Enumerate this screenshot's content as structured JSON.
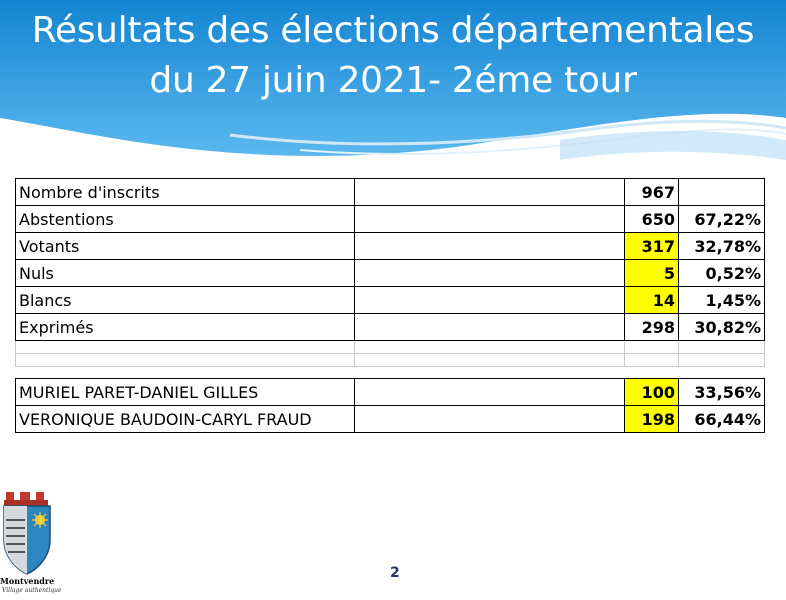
{
  "header": {
    "title_line1": "Résultats des élections départementales",
    "title_line2": "du 27 juin 2021- 2éme tour"
  },
  "table": {
    "rows": [
      {
        "label": "Nombre d'inscrits",
        "value": "967",
        "percent": "",
        "highlight": false
      },
      {
        "label": "Abstentions",
        "value": "650",
        "percent": "67,22%",
        "highlight": false
      },
      {
        "label": "Votants",
        "value": "317",
        "percent": "32,78%",
        "highlight": true
      },
      {
        "label": "Nuls",
        "value": "5",
        "percent": "0,52%",
        "highlight": true
      },
      {
        "label": "Blancs",
        "value": "14",
        "percent": "1,45%",
        "highlight": true
      },
      {
        "label": "Exprimés",
        "value": "298",
        "percent": "30,82%",
        "highlight": false
      }
    ],
    "candidates": [
      {
        "label": "MURIEL PARET-DANIEL GILLES",
        "value": "100",
        "percent": "33,56%",
        "highlight": true
      },
      {
        "label": "VERONIQUE BAUDOIN-CARYL FRAUD",
        "value": "198",
        "percent": "66,44%",
        "highlight": true
      }
    ]
  },
  "footer": {
    "page_number": "2",
    "logo_name": "Montvendre",
    "logo_tagline": "Village authentique",
    "logo_icon": "coat-of-arms-icon"
  },
  "colors": {
    "header_blue": "#1e8fd6",
    "highlight": "#ffff00",
    "page_number": "#1f3864"
  }
}
